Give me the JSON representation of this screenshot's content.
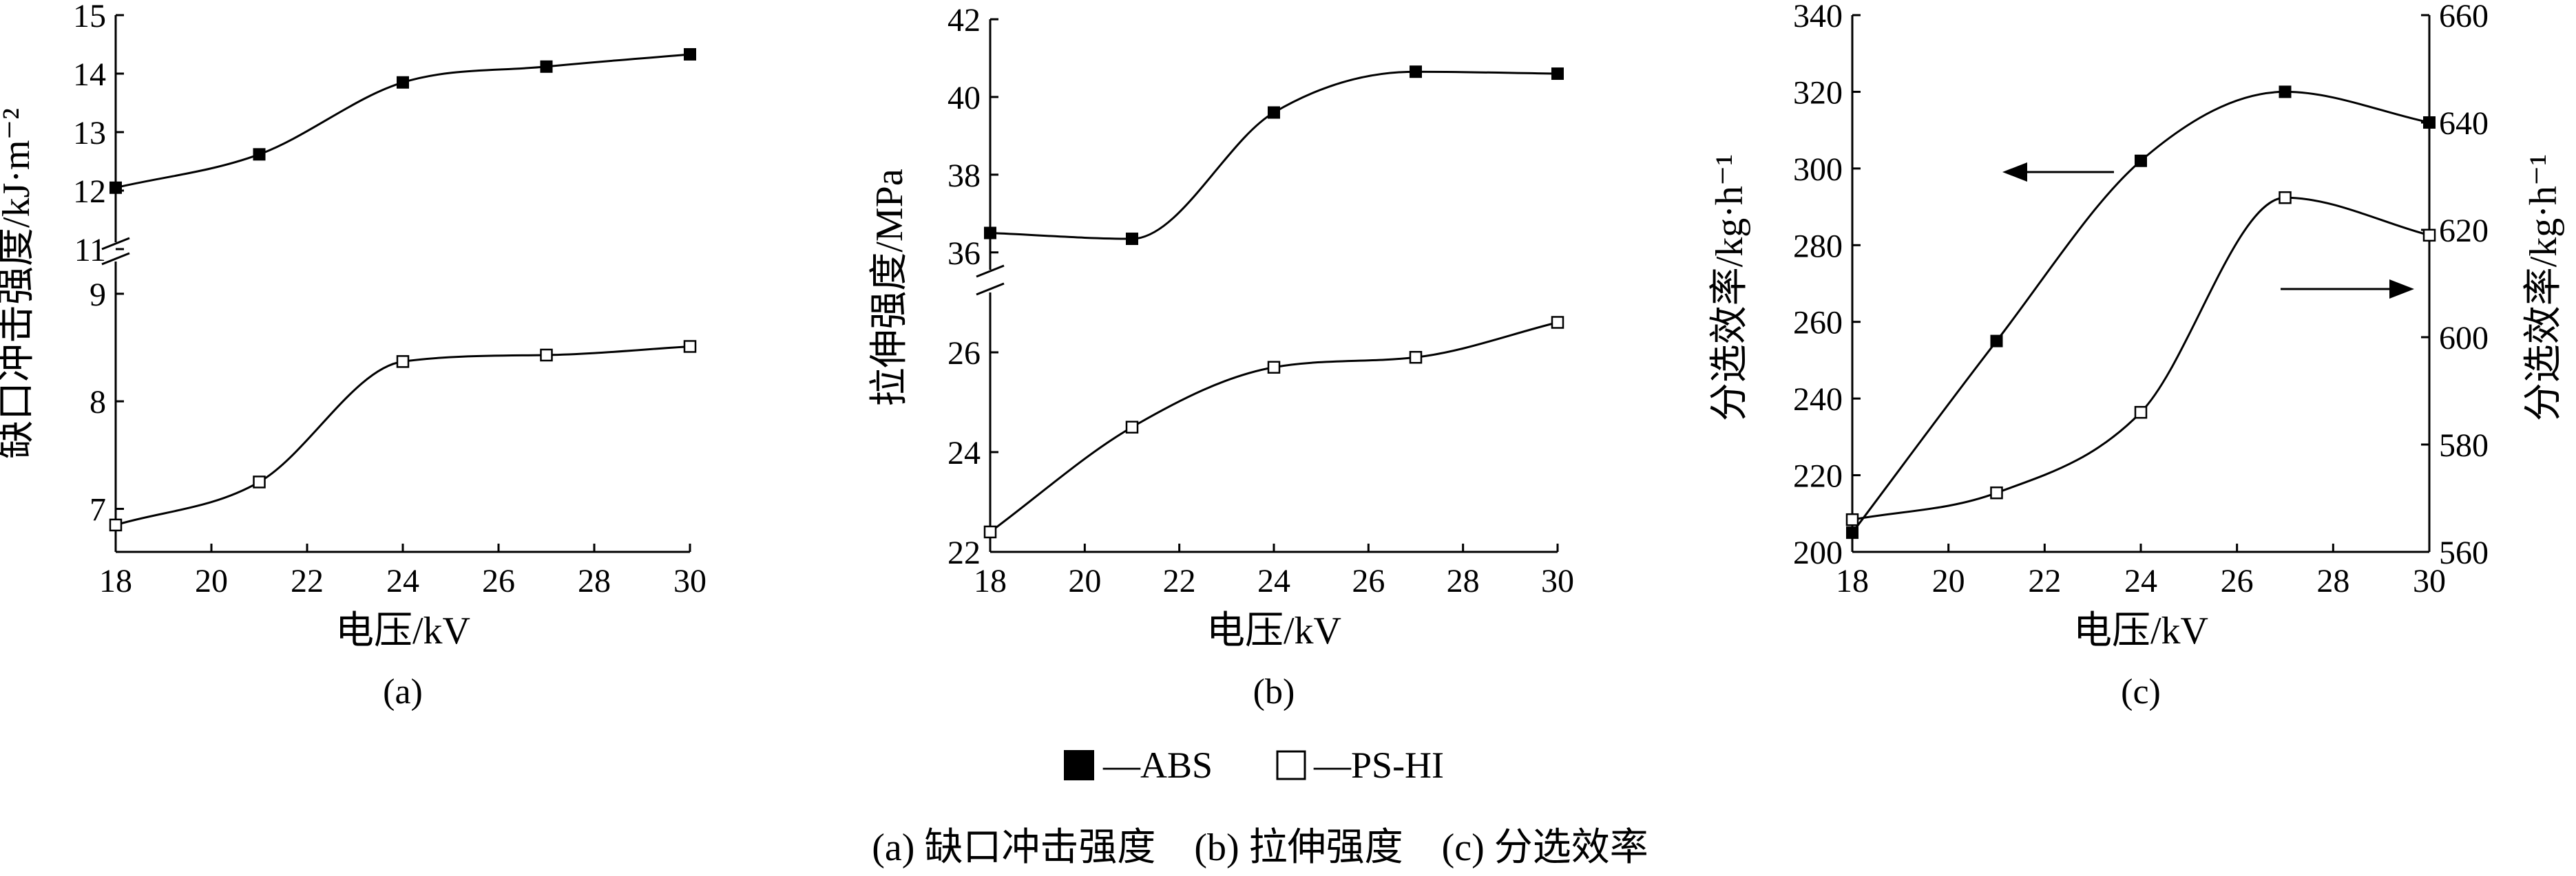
{
  "legend": {
    "items": [
      {
        "label": "—ABS",
        "marker": "filled-square"
      },
      {
        "label": "—PS-HI",
        "marker": "open-square"
      }
    ]
  },
  "caption": "(a) 缺口冲击强度    (b) 拉伸强度    (c) 分选效率",
  "colors": {
    "ink": "#000000",
    "background": "#ffffff"
  },
  "chart_data": [
    {
      "type": "line",
      "panel_label": "(a)",
      "xlabel": "电压/kV",
      "ylabel": "缺口冲击强度/kJ·m⁻²",
      "xlim": [
        18,
        30
      ],
      "xticks": [
        18,
        20,
        22,
        24,
        26,
        28,
        30
      ],
      "y_axis_break": true,
      "ylim_upper": [
        11,
        15
      ],
      "yticks_upper": [
        11,
        12,
        13,
        14,
        15
      ],
      "ylim_lower": [
        6.6,
        9.3
      ],
      "yticks_lower": [
        7,
        8,
        9
      ],
      "x": [
        18,
        21,
        24,
        27,
        30
      ],
      "series": [
        {
          "name": "ABS",
          "marker": "filled-square",
          "segment": "upper",
          "values": [
            12.05,
            12.62,
            13.85,
            14.12,
            14.33
          ]
        },
        {
          "name": "PS-HI",
          "marker": "open-square",
          "segment": "lower",
          "values": [
            6.85,
            7.25,
            8.37,
            8.43,
            8.51
          ]
        }
      ],
      "grid": false
    },
    {
      "type": "line",
      "panel_label": "(b)",
      "xlabel": "电压/kV",
      "ylabel": "拉伸强度/MPa",
      "xlim": [
        18,
        30
      ],
      "xticks": [
        18,
        20,
        22,
        24,
        26,
        28,
        30
      ],
      "y_axis_break": true,
      "ylim_upper": [
        35.5,
        42
      ],
      "yticks_upper": [
        36,
        38,
        40,
        42
      ],
      "ylim_lower": [
        22,
        27.2
      ],
      "yticks_lower": [
        22,
        24,
        26
      ],
      "x": [
        18,
        21,
        24,
        27,
        30
      ],
      "series": [
        {
          "name": "ABS",
          "marker": "filled-square",
          "segment": "upper",
          "values": [
            36.5,
            36.35,
            39.6,
            40.65,
            40.6
          ]
        },
        {
          "name": "PS-HI",
          "marker": "open-square",
          "segment": "lower",
          "values": [
            22.4,
            24.5,
            25.7,
            25.9,
            26.6
          ]
        }
      ],
      "grid": false
    },
    {
      "type": "line",
      "panel_label": "(c)",
      "xlabel": "电压/kV",
      "ylabel": "分选效率/kg·h⁻¹",
      "ylabel_right": "分选效率/kg·h⁻¹",
      "xlim": [
        18,
        30
      ],
      "xticks": [
        18,
        20,
        22,
        24,
        26,
        28,
        30
      ],
      "ylim": [
        200,
        340
      ],
      "yticks": [
        200,
        220,
        240,
        260,
        280,
        300,
        320,
        340
      ],
      "ylim_right": [
        560,
        660
      ],
      "yticks_right": [
        560,
        580,
        600,
        620,
        640,
        660
      ],
      "x": [
        18,
        21,
        24,
        27,
        30
      ],
      "series": [
        {
          "name": "ABS",
          "marker": "filled-square",
          "axis": "left",
          "values": [
            205,
            255,
            302,
            320,
            312
          ]
        },
        {
          "name": "PS-HI",
          "marker": "open-square",
          "axis": "right",
          "values": [
            566,
            571,
            586,
            626,
            619
          ]
        }
      ],
      "annotations": [
        {
          "type": "arrow",
          "direction": "left",
          "refers_to": "ABS"
        },
        {
          "type": "arrow",
          "direction": "right",
          "refers_to": "PS-HI"
        }
      ],
      "grid": false
    }
  ]
}
